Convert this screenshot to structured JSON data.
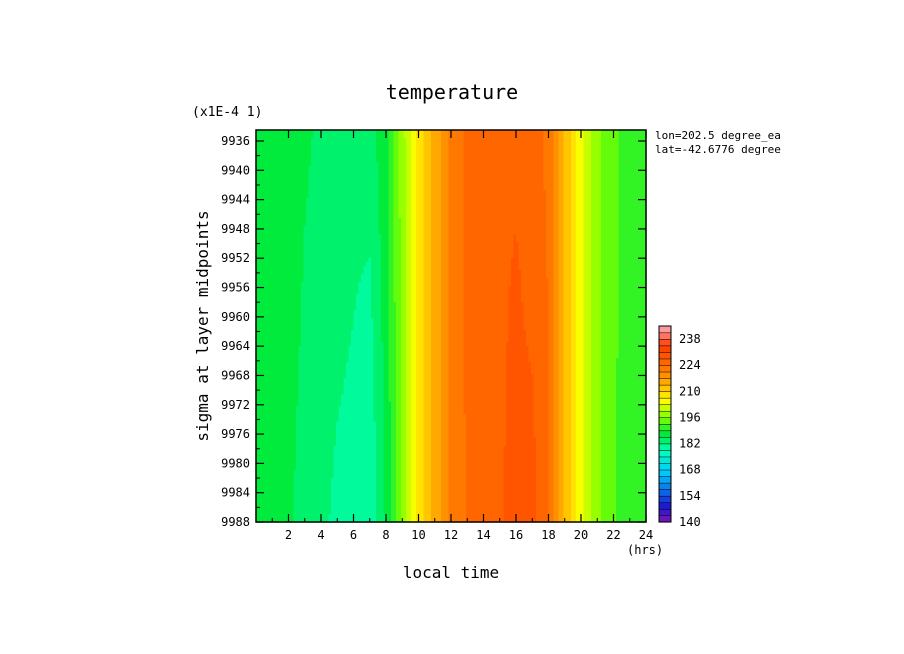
{
  "chart_data": {
    "type": "heatmap",
    "title": "temperature",
    "xlabel": "local time",
    "x_unit": "(hrs)",
    "ylabel": "sigma at layer midpoints",
    "y_scale_note": "(x1E-4 1)",
    "annotations": [
      "lon=202.5 degree_ea",
      "lat=-42.6776 degree"
    ],
    "x_ticks": [
      "2",
      "4",
      "6",
      "8",
      "10",
      "12",
      "14",
      "16",
      "18",
      "20",
      "22",
      "24"
    ],
    "y_ticks": [
      "9936",
      "9940",
      "9944",
      "9948",
      "9952",
      "9956",
      "9960",
      "9964",
      "9968",
      "9972",
      "9976",
      "9980",
      "9984",
      "9988"
    ],
    "xlim": [
      0,
      24
    ],
    "ylim": [
      9934.5,
      9988
    ],
    "y_inverted": true,
    "colorbar": {
      "min": 140,
      "max": 245,
      "step": 3.5,
      "tick_labels": [
        "140",
        "154",
        "168",
        "182",
        "196",
        "210",
        "224",
        "238"
      ]
    },
    "x": [
      0,
      1,
      2,
      3,
      4,
      5,
      6,
      7,
      8,
      9,
      10,
      11,
      12,
      13,
      14,
      15,
      16,
      17,
      18,
      19,
      20,
      21,
      22,
      23,
      24
    ],
    "y": [
      9934.5,
      9961,
      9988
    ],
    "z": [
      [
        189,
        188,
        187,
        186,
        185,
        184,
        183,
        184,
        188,
        198,
        208,
        215,
        221,
        225,
        226,
        227,
        227,
        226,
        223,
        213,
        204,
        197,
        193,
        191,
        189
      ],
      [
        189,
        188,
        187,
        185,
        184,
        183,
        182,
        181,
        187,
        197,
        208,
        215,
        221,
        225,
        226,
        227,
        228,
        227,
        224,
        213,
        204,
        197,
        193,
        191,
        189
      ],
      [
        189,
        188,
        186,
        184,
        183,
        181,
        180,
        179,
        186,
        197,
        208,
        215,
        221,
        224,
        226,
        227,
        229,
        229,
        224,
        213,
        204,
        197,
        193,
        190,
        189
      ]
    ],
    "legend": "right colorbar"
  }
}
